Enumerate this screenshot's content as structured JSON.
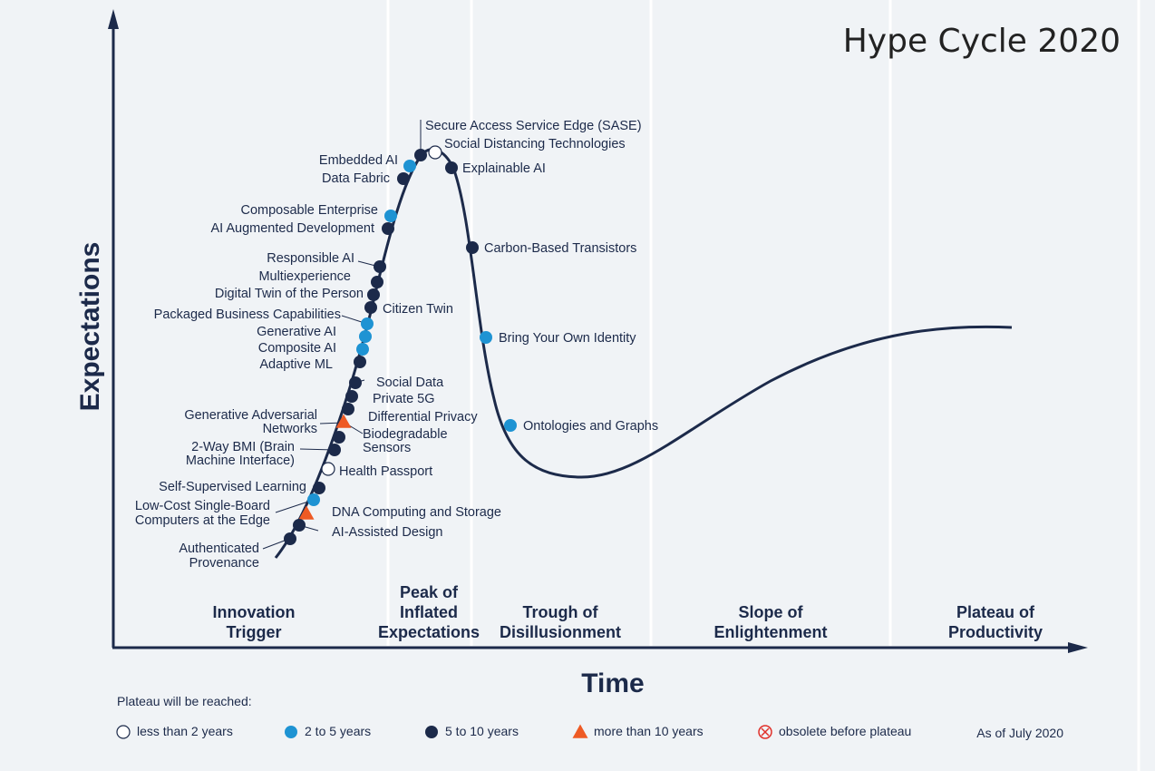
{
  "title": "Hype Cycle 2020",
  "x_axis_label": "Time",
  "y_axis_label": "Expectations",
  "phases": [
    {
      "id": "innovation-trigger",
      "lines": [
        "Innovation",
        "Trigger"
      ]
    },
    {
      "id": "peak",
      "lines": [
        "Peak of",
        "Inflated",
        "Expectations"
      ]
    },
    {
      "id": "trough",
      "lines": [
        "Trough of",
        "Disillusionment"
      ]
    },
    {
      "id": "slope",
      "lines": [
        "Slope of",
        "Enlightenment"
      ]
    },
    {
      "id": "plateau",
      "lines": [
        "Plateau of",
        "Productivity"
      ]
    }
  ],
  "legend": {
    "heading": "Plateau will be reached:",
    "items": [
      {
        "key": "lt2",
        "label": "less than 2 years"
      },
      {
        "key": "2to5",
        "label": "2 to 5 years"
      },
      {
        "key": "5to10",
        "label": "5 to 10 years"
      },
      {
        "key": "gt10",
        "label": "more than 10 years"
      },
      {
        "key": "obsolete",
        "label": "obsolete before plateau"
      }
    ],
    "as_of": "As of July 2020"
  },
  "colors": {
    "lt2": "#ffffff",
    "2to5": "#1e93d3",
    "5to10": "#1c2a4a",
    "gt10": "#ee5a24",
    "obsolete": "#e0302a",
    "curve": "#1c2a4a"
  },
  "technologies": [
    {
      "name": "Secure Access Service Edge (SASE)",
      "class": "5to10"
    },
    {
      "name": "Social Distancing Technologies",
      "class": "lt2"
    },
    {
      "name": "Embedded AI",
      "class": "2to5"
    },
    {
      "name": "Data Fabric",
      "class": "5to10"
    },
    {
      "name": "Explainable AI",
      "class": "5to10"
    },
    {
      "name": "Composable Enterprise",
      "class": "2to5"
    },
    {
      "name": "AI Augmented Development",
      "class": "5to10"
    },
    {
      "name": "Carbon-Based Transistors",
      "class": "5to10"
    },
    {
      "name": "Responsible AI",
      "class": "5to10"
    },
    {
      "name": "Multiexperience",
      "class": "5to10"
    },
    {
      "name": "Digital Twin of the Person",
      "class": "5to10"
    },
    {
      "name": "Citizen Twin",
      "class": "5to10"
    },
    {
      "name": "Packaged Business Capabilities",
      "class": "2to5"
    },
    {
      "name": "Generative AI",
      "class": "2to5"
    },
    {
      "name": "Composite AI",
      "class": "2to5"
    },
    {
      "name": "Bring Your Own Identity",
      "class": "2to5"
    },
    {
      "name": "Adaptive ML",
      "class": "5to10"
    },
    {
      "name": "Social Data",
      "class": "5to10"
    },
    {
      "name": "Private 5G",
      "class": "5to10"
    },
    {
      "name": "Differential Privacy",
      "class": "5to10"
    },
    {
      "name": "Generative Adversarial Networks",
      "class": "gt10"
    },
    {
      "name": "Biodegradable Sensors",
      "class": "5to10"
    },
    {
      "name": "Ontologies and Graphs",
      "class": "2to5"
    },
    {
      "name": "2-Way BMI (Brain Machine Interface)",
      "class": "5to10"
    },
    {
      "name": "Health Passport",
      "class": "lt2"
    },
    {
      "name": "Self-Supervised Learning",
      "class": "5to10"
    },
    {
      "name": "Low-Cost Single-Board Computers at the Edge",
      "class": "2to5"
    },
    {
      "name": "DNA Computing and Storage",
      "class": "gt10"
    },
    {
      "name": "AI-Assisted Design",
      "class": "5to10"
    },
    {
      "name": "Authenticated Provenance",
      "class": "5to10"
    }
  ]
}
